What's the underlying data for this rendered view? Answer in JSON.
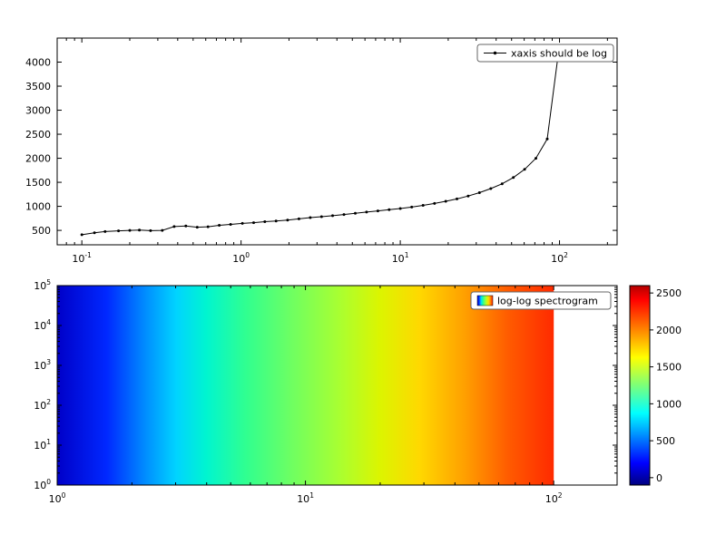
{
  "figure": {
    "background": "#ffffff"
  },
  "chart_data": [
    {
      "type": "line",
      "legend": "xaxis should be log",
      "xscale": "log",
      "yscale": "linear",
      "xlabel": "",
      "ylabel": "",
      "xlim": [
        0.07,
        230
      ],
      "ylim": [
        200,
        4500
      ],
      "xtick_decades": [
        -1,
        0,
        1,
        2
      ],
      "yticks": [
        500,
        1000,
        1500,
        2000,
        2500,
        3000,
        3500,
        4000
      ],
      "line_color": "#000000",
      "marker": "dot",
      "legend_position": "upper right",
      "x": [
        0.1,
        0.12,
        0.14,
        0.17,
        0.2,
        0.23,
        0.27,
        0.32,
        0.38,
        0.45,
        0.53,
        0.62,
        0.73,
        0.86,
        1.02,
        1.2,
        1.41,
        1.66,
        1.96,
        2.31,
        2.72,
        3.2,
        3.76,
        4.43,
        5.22,
        6.14,
        7.23,
        8.51,
        10,
        11.8,
        13.9,
        16.4,
        19.3,
        22.7,
        26.7,
        31.4,
        37,
        43.6,
        51.3,
        60.4,
        71.1,
        83.7,
        98.5
      ],
      "y": [
        410,
        450,
        475,
        490,
        500,
        505,
        495,
        500,
        580,
        590,
        565,
        575,
        605,
        625,
        645,
        660,
        680,
        695,
        715,
        740,
        765,
        785,
        805,
        830,
        855,
        880,
        905,
        930,
        955,
        985,
        1020,
        1060,
        1105,
        1155,
        1215,
        1285,
        1370,
        1470,
        1600,
        1770,
        2000,
        2400,
        4200
      ]
    },
    {
      "type": "heatmap",
      "legend": "log-log spectrogram",
      "xscale": "log",
      "yscale": "log",
      "xlim": [
        1,
        180
      ],
      "ylim": [
        1,
        100000
      ],
      "image_extent_x": [
        1,
        100
      ],
      "image_extent_y": [
        1,
        100000
      ],
      "xtick_decades": [
        0,
        1,
        2
      ],
      "ytick_decades": [
        0,
        1,
        2,
        3,
        4,
        5
      ],
      "colormap": "jet",
      "legend_position": "upper right",
      "gradient_stops": [
        {
          "pos": 0.0,
          "color": "#0000c8"
        },
        {
          "pos": 0.1,
          "color": "#0028ff"
        },
        {
          "pos": 0.18,
          "color": "#0090ff"
        },
        {
          "pos": 0.24,
          "color": "#00d4ff"
        },
        {
          "pos": 0.3,
          "color": "#00f5d0"
        },
        {
          "pos": 0.38,
          "color": "#30ff90"
        },
        {
          "pos": 0.475,
          "color": "#70ff60"
        },
        {
          "pos": 0.57,
          "color": "#aaff30"
        },
        {
          "pos": 0.65,
          "color": "#dcf500"
        },
        {
          "pos": 0.73,
          "color": "#ffd800"
        },
        {
          "pos": 0.82,
          "color": "#ffa000"
        },
        {
          "pos": 0.91,
          "color": "#ff5a00"
        },
        {
          "pos": 1.0,
          "color": "#ff2a00"
        }
      ],
      "colorbar": {
        "vmin": -100,
        "vmax": 2600,
        "ticks": [
          0,
          500,
          1000,
          1500,
          2000,
          2500
        ],
        "gradient_stops": [
          {
            "pos": 0.0,
            "color": "#000080"
          },
          {
            "pos": 0.11,
            "color": "#0000ff"
          },
          {
            "pos": 0.36,
            "color": "#00ffff"
          },
          {
            "pos": 0.5,
            "color": "#7cff79"
          },
          {
            "pos": 0.64,
            "color": "#ffff00"
          },
          {
            "pos": 0.93,
            "color": "#ff0000"
          },
          {
            "pos": 1.0,
            "color": "#b40000"
          }
        ]
      }
    }
  ]
}
